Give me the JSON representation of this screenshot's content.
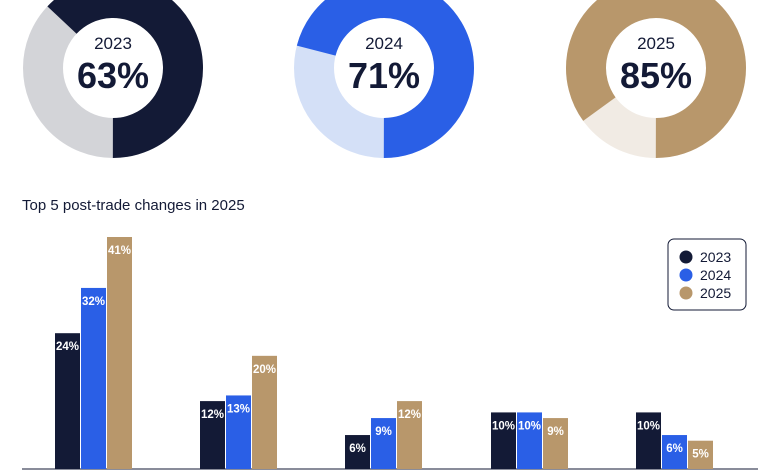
{
  "donuts": [
    {
      "year": "2023",
      "label": "63%",
      "value": 63,
      "color": "#131a36",
      "track_color": "#d3d4d8"
    },
    {
      "year": "2024",
      "label": "71%",
      "value": 71,
      "color": "#2a5fe6",
      "track_color": "#d4e0f7"
    },
    {
      "year": "2025",
      "label": "85%",
      "value": 85,
      "color": "#b8976b",
      "track_color": "#f1ebe4"
    }
  ],
  "chart_data": {
    "type": "bar",
    "title": "Top 5 post-trade changes in 2025",
    "categories": [
      "",
      "",
      "",
      "",
      ""
    ],
    "series": [
      {
        "name": "2023",
        "color": "#131a36",
        "values": [
          24,
          12,
          6,
          10,
          10
        ],
        "labels": [
          "24%",
          "12%",
          "6%",
          "10%",
          "10%"
        ]
      },
      {
        "name": "2024",
        "color": "#2a5fe6",
        "values": [
          32,
          13,
          9,
          10,
          6
        ],
        "labels": [
          "32%",
          "13%",
          "9%",
          "10%",
          "6%"
        ]
      },
      {
        "name": "2025",
        "color": "#b8976b",
        "values": [
          41,
          20,
          12,
          9,
          5
        ],
        "labels": [
          "41%",
          "20%",
          "12%",
          "9%",
          "5%"
        ]
      }
    ],
    "ylim": [
      0,
      41
    ],
    "grid": false,
    "legend_position": "top-right"
  }
}
